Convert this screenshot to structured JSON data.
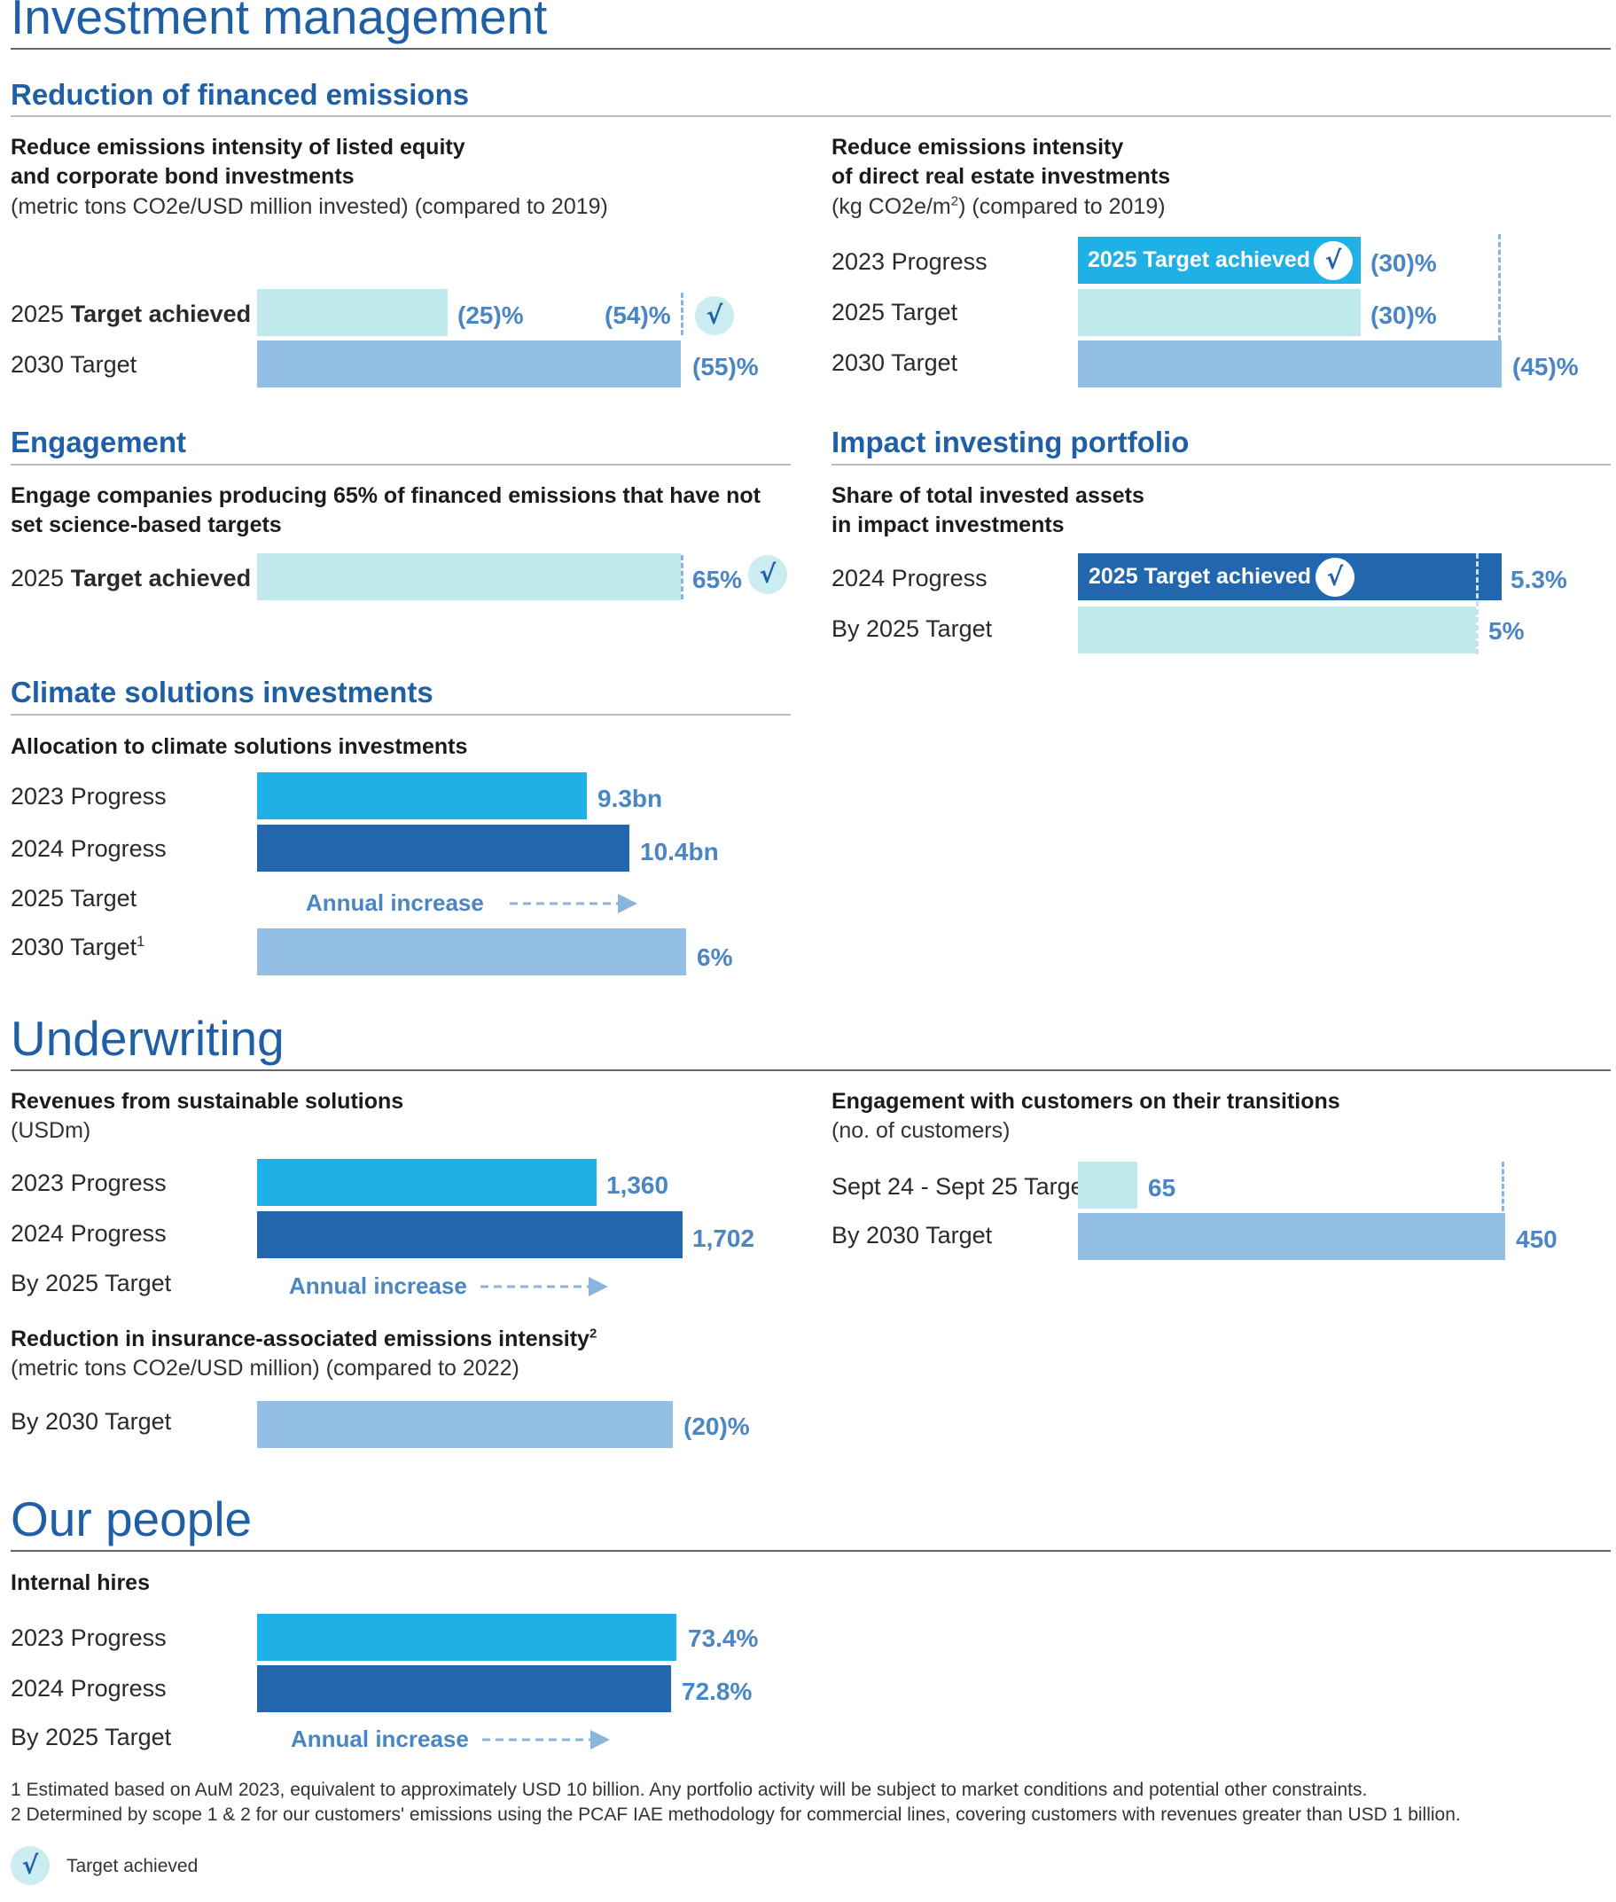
{
  "sections": {
    "investment": "Investment management",
    "underwriting": "Underwriting",
    "people": "Our people"
  },
  "subsections": {
    "financed": "Reduction of financed emissions",
    "engagement": "Engagement",
    "impact": "Impact investing portfolio",
    "climate": "Climate solutions investments"
  },
  "listed": {
    "title_lines": [
      "Reduce emissions intensity of listed equity",
      "and corporate bond investments"
    ],
    "unit": "(metric tons CO2e/USD million invested) (compared to 2019)",
    "row1_prefix": "2025 ",
    "row1_bold": "Target achieved",
    "row2": "2030 Target",
    "target2025_value": "(25)%",
    "progress_value": "(54)%",
    "target2030_value": "(55)%"
  },
  "realestate": {
    "title_lines": [
      "Reduce emissions intensity",
      "of direct real estate investments"
    ],
    "unit_pre": "(kg CO2e/m",
    "unit_sup": "2",
    "unit_post": ") (compared to 2019)",
    "rows": [
      "2023 Progress",
      "2025 Target",
      "2030 Target"
    ],
    "badge": "2025 Target achieved",
    "progress_value": "(30)%",
    "target2025_value": "(30)%",
    "target2030_value": "(45)%"
  },
  "engagement": {
    "title_lines": [
      "Engage companies producing 65% of financed emissions that have not",
      "set science-based targets"
    ],
    "row_prefix": "2025 ",
    "row_bold": "Target achieved",
    "value": "65%"
  },
  "impact": {
    "title_lines": [
      "Share of total invested assets",
      "in impact investments"
    ],
    "rows": [
      "2024 Progress",
      "By 2025 Target"
    ],
    "badge": "2025 Target achieved",
    "progress_value": "5.3%",
    "target_value": "5%"
  },
  "climate": {
    "title": "Allocation to climate solutions investments",
    "rows": [
      "2023 Progress",
      "2024 Progress",
      "2025 Target",
      "2030 Target"
    ],
    "target2030_sup": "1",
    "values": [
      "9.3bn",
      "10.4bn",
      "6%"
    ],
    "annual": "Annual increase"
  },
  "revenues": {
    "title": "Revenues from sustainable solutions",
    "unit": "(USDm)",
    "rows": [
      "2023 Progress",
      "2024 Progress",
      "By 2025 Target"
    ],
    "values": [
      "1,360",
      "1,702"
    ],
    "annual": "Annual increase"
  },
  "insurance": {
    "title": "Reduction in insurance-associated emissions intensity",
    "title_sup": "2",
    "unit": "(metric tons CO2e/USD million) (compared to 2022)",
    "row": "By 2030 Target",
    "value": "(20)%"
  },
  "customers": {
    "title": "Engagement with customers on their transitions",
    "unit": "(no. of customers)",
    "rows": [
      "Sept 24 - Sept 25 Target",
      "By 2030 Target"
    ],
    "values": [
      "65",
      "450"
    ]
  },
  "hires": {
    "title": "Internal hires",
    "rows": [
      "2023 Progress",
      "2024 Progress",
      "By 2025 Target"
    ],
    "values": [
      "73.4%",
      "72.8%"
    ],
    "annual": "Annual increase"
  },
  "footnotes": [
    "1  Estimated based on AuM 2023, equivalent to approximately USD 10 billion. Any portfolio activity will be subject to market conditions and potential other constraints.",
    "2  Determined by scope 1 & 2 for our customers' emissions using the PCAF IAE methodology for commercial lines, covering customers with revenues greater than USD 1 billion."
  ],
  "legend": {
    "label": "Target achieved"
  },
  "check_glyph": "√",
  "colors": {
    "heading": "#1f5fa6",
    "teal": "#bfe9ea",
    "light_blue": "#93bee3",
    "cyan": "#1fb0e5",
    "dark_blue": "#2266ad",
    "value": "#4a86c4"
  },
  "chart_data": [
    {
      "type": "bar",
      "title": "Reduce emissions intensity of listed equity and corporate bond investments",
      "categories": [
        "2025 Target achieved",
        "2030 Target"
      ],
      "series": [
        {
          "name": "2025 Target",
          "values": [
            -25,
            null
          ]
        },
        {
          "name": "Progress",
          "values": [
            -54,
            null
          ]
        },
        {
          "name": "2030 Target",
          "values": [
            null,
            -55
          ]
        }
      ]
    },
    {
      "type": "bar",
      "title": "Reduce emissions intensity of direct real estate investments",
      "categories": [
        "2023 Progress",
        "2025 Target",
        "2030 Target"
      ],
      "values": [
        -30,
        -30,
        -45
      ]
    },
    {
      "type": "bar",
      "title": "Engage companies producing 65% of financed emissions that have not set science-based targets",
      "categories": [
        "2025 Target achieved"
      ],
      "values": [
        65
      ]
    },
    {
      "type": "bar",
      "title": "Share of total invested assets in impact investments",
      "categories": [
        "2024 Progress",
        "By 2025 Target"
      ],
      "values": [
        5.3,
        5
      ]
    },
    {
      "type": "bar",
      "title": "Allocation to climate solutions investments",
      "categories": [
        "2023 Progress",
        "2024 Progress",
        "2025 Target",
        "2030 Target"
      ],
      "values": [
        9.3,
        10.4,
        null,
        6
      ]
    },
    {
      "type": "bar",
      "title": "Revenues from sustainable solutions",
      "categories": [
        "2023 Progress",
        "2024 Progress",
        "By 2025 Target"
      ],
      "values": [
        1360,
        1702,
        null
      ]
    },
    {
      "type": "bar",
      "title": "Reduction in insurance-associated emissions intensity",
      "categories": [
        "By 2030 Target"
      ],
      "values": [
        -20
      ]
    },
    {
      "type": "bar",
      "title": "Engagement with customers on their transitions",
      "categories": [
        "Sept 24 - Sept 25 Target",
        "By 2030 Target"
      ],
      "values": [
        65,
        450
      ]
    },
    {
      "type": "bar",
      "title": "Internal hires",
      "categories": [
        "2023 Progress",
        "2024 Progress",
        "By 2025 Target"
      ],
      "values": [
        73.4,
        72.8,
        null
      ]
    }
  ]
}
